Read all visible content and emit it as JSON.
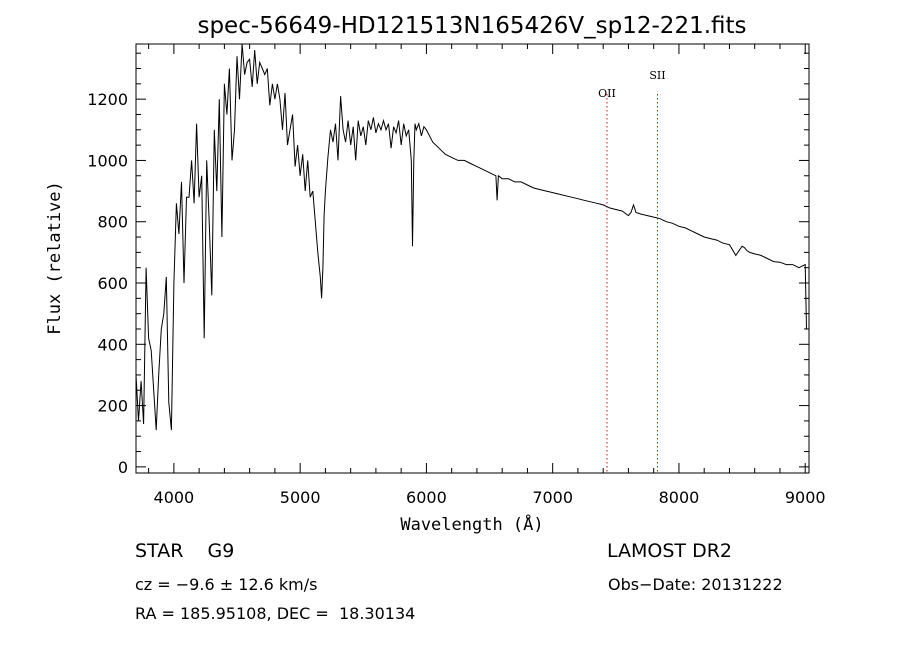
{
  "chart_data": {
    "type": "line",
    "title": "spec-56649-HD121513N165426V_sp12-221.fits",
    "xlabel": "Wavelength (Å)",
    "ylabel": "Flux (relative)",
    "xlim": [
      3700,
      9030
    ],
    "ylim": [
      -20,
      1380
    ],
    "xticks": [
      4000,
      5000,
      6000,
      7000,
      8000,
      9000
    ],
    "yticks": [
      0,
      200,
      400,
      600,
      800,
      1000,
      1200
    ],
    "grid": false,
    "line_color": "#000000",
    "line_markers": [
      {
        "label": "OII",
        "x": 7430,
        "color": "#ff0000"
      },
      {
        "label": "SII",
        "x": 7830,
        "color": "#ff0000"
      }
    ],
    "series": [
      {
        "x": [
          3700,
          3720,
          3740,
          3760,
          3780,
          3800,
          3820,
          3840,
          3860,
          3880,
          3900,
          3920,
          3940,
          3960,
          3980,
          4000,
          4020,
          4040,
          4060,
          4080,
          4100,
          4120,
          4140,
          4160,
          4180,
          4200,
          4220,
          4240,
          4260,
          4280,
          4300,
          4320,
          4340,
          4360,
          4380,
          4400,
          4420,
          4440,
          4460,
          4480,
          4500,
          4520,
          4540,
          4560,
          4580,
          4600,
          4620,
          4640,
          4660,
          4680,
          4700,
          4720,
          4740,
          4760,
          4780,
          4800,
          4820,
          4840,
          4860,
          4880,
          4900,
          4920,
          4940,
          4960,
          4980,
          5000,
          5020,
          5040,
          5060,
          5080,
          5100,
          5120,
          5140,
          5160,
          5170,
          5180,
          5190,
          5200,
          5220,
          5240,
          5260,
          5280,
          5300,
          5320,
          5340,
          5360,
          5380,
          5400,
          5420,
          5440,
          5460,
          5480,
          5500,
          5520,
          5540,
          5560,
          5580,
          5600,
          5620,
          5640,
          5660,
          5680,
          5700,
          5720,
          5740,
          5760,
          5780,
          5800,
          5820,
          5840,
          5860,
          5880,
          5890,
          5900,
          5910,
          5920,
          5940,
          5960,
          5980,
          6000,
          6050,
          6100,
          6150,
          6200,
          6250,
          6300,
          6350,
          6400,
          6450,
          6500,
          6550,
          6560,
          6570,
          6600,
          6650,
          6700,
          6750,
          6800,
          6850,
          6900,
          6950,
          7000,
          7050,
          7100,
          7150,
          7200,
          7250,
          7300,
          7350,
          7400,
          7450,
          7500,
          7550,
          7600,
          7620,
          7640,
          7660,
          7700,
          7750,
          7800,
          7850,
          7900,
          7950,
          8000,
          8050,
          8100,
          8150,
          8200,
          8250,
          8300,
          8350,
          8400,
          8450,
          8500,
          8520,
          8540,
          8560,
          8600,
          8650,
          8700,
          8750,
          8800,
          8850,
          8900,
          8950,
          9000,
          9010
        ],
        "y": [
          300,
          150,
          280,
          140,
          650,
          420,
          380,
          250,
          120,
          300,
          450,
          500,
          620,
          210,
          120,
          600,
          860,
          760,
          930,
          600,
          880,
          880,
          1000,
          860,
          1120,
          880,
          950,
          420,
          1000,
          800,
          560,
          1100,
          900,
          1200,
          750,
          1250,
          1150,
          1300,
          1000,
          1100,
          1340,
          1200,
          1380,
          1280,
          1320,
          1330,
          1240,
          1360,
          1250,
          1320,
          1300,
          1280,
          1300,
          1180,
          1250,
          1200,
          1250,
          1200,
          1100,
          1220,
          1050,
          1100,
          1150,
          980,
          1050,
          950,
          1020,
          900,
          1000,
          880,
          900,
          800,
          700,
          620,
          550,
          650,
          820,
          900,
          1010,
          1100,
          1060,
          1120,
          1000,
          1210,
          1100,
          1060,
          1130,
          1050,
          1110,
          1000,
          1130,
          1080,
          1110,
          1050,
          1130,
          1100,
          1140,
          1090,
          1120,
          1100,
          1130,
          1100,
          1120,
          1040,
          1110,
          1090,
          1130,
          1050,
          1120,
          1080,
          1100,
          1000,
          720,
          1000,
          1120,
          1100,
          1120,
          1080,
          1110,
          1100,
          1060,
          1040,
          1020,
          1010,
          1000,
          1000,
          990,
          980,
          970,
          960,
          950,
          870,
          950,
          940,
          940,
          930,
          930,
          920,
          910,
          905,
          900,
          895,
          890,
          885,
          880,
          875,
          870,
          865,
          860,
          855,
          845,
          840,
          835,
          820,
          830,
          855,
          830,
          825,
          820,
          815,
          810,
          800,
          795,
          785,
          780,
          770,
          760,
          750,
          745,
          740,
          730,
          725,
          690,
          720,
          715,
          705,
          700,
          695,
          690,
          680,
          670,
          668,
          660,
          660,
          650,
          660,
          450
        ]
      }
    ]
  },
  "info": {
    "object_class": "STAR    G9",
    "survey": "LAMOST DR2",
    "cz": "cz = −9.6 ± 12.6 km/s",
    "obs_date": "Obs−Date: 20131222",
    "coords": "RA = 185.95108, DEC =  18.30134"
  }
}
